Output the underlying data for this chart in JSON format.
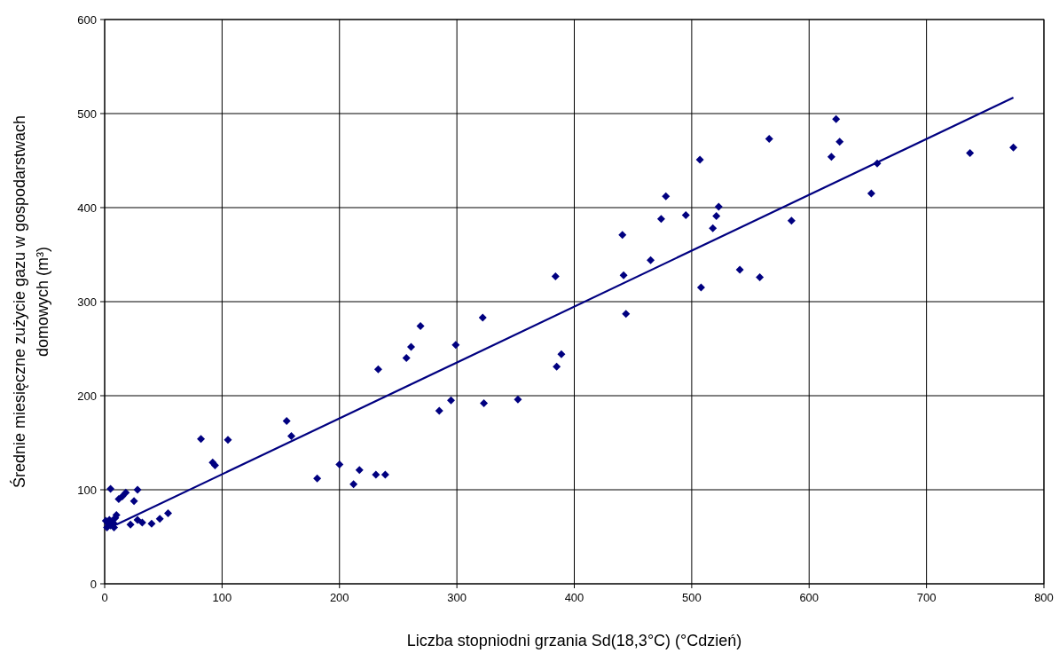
{
  "chart_data": {
    "type": "scatter",
    "xlabel": "Liczba stopniodni grzania Sd(18,3°C)  (°Cdzień)",
    "ylabel": "Średnie miesięczne zużycie gazu w gospodarstwach domowych (m³)",
    "xlim": [
      0,
      800
    ],
    "ylim": [
      0,
      600
    ],
    "xticks": [
      0,
      100,
      200,
      300,
      400,
      500,
      600,
      700,
      800
    ],
    "yticks": [
      0,
      100,
      200,
      300,
      400,
      500,
      600
    ],
    "grid": true,
    "marker": "diamond",
    "series": [
      {
        "type": "scatter",
        "color": "#000080",
        "x": [
          1,
          2,
          3,
          4,
          5,
          6,
          8,
          9,
          10,
          8,
          5,
          12,
          15,
          18,
          25,
          28,
          22,
          28,
          32,
          40,
          47,
          54,
          82,
          92,
          94,
          105,
          155,
          159,
          181,
          200,
          212,
          217,
          231,
          239,
          233,
          257,
          261,
          269,
          285,
          295,
          299,
          322,
          323,
          352,
          384,
          385,
          389,
          441,
          442,
          444,
          465,
          474,
          478,
          495,
          507,
          508,
          518,
          521,
          523,
          541,
          558,
          566,
          585,
          619,
          623,
          626,
          653,
          658,
          737,
          774
        ],
        "values": [
          67,
          60,
          64,
          68,
          62,
          66,
          60,
          70,
          73,
          64,
          101,
          90,
          93,
          97,
          88,
          100,
          63,
          68,
          65,
          64,
          69,
          75,
          154,
          129,
          126,
          153,
          173,
          157,
          112,
          127,
          106,
          121,
          116,
          116,
          228,
          240,
          252,
          274,
          184,
          195,
          254,
          283,
          192,
          196,
          327,
          231,
          244,
          371,
          328,
          287,
          344,
          388,
          412,
          392,
          451,
          315,
          378,
          391,
          401,
          334,
          326,
          473,
          386,
          454,
          494,
          470,
          415,
          447,
          458,
          464
        ]
      },
      {
        "type": "line",
        "color": "#000080",
        "x": [
          10,
          774
        ],
        "values": [
          63,
          517
        ],
        "marker": "none"
      }
    ]
  }
}
